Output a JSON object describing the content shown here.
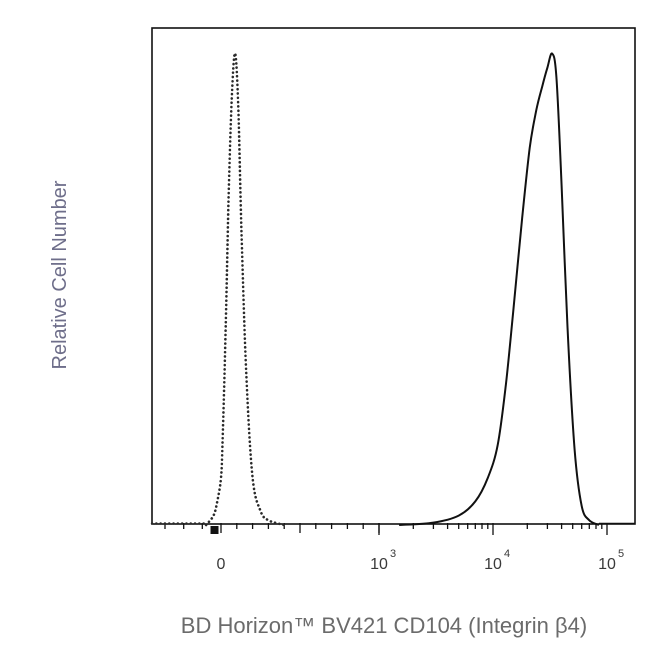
{
  "chart_data": {
    "type": "line",
    "title": "",
    "xlabel": "BD Horizon™ BV421 CD104 (Integrin β4)",
    "ylabel": "Relative Cell Number",
    "x_scale": "biexponential",
    "xlim": [
      -300,
      200000
    ],
    "ylim": [
      0,
      1.05
    ],
    "grid": false,
    "legend": "none",
    "x_ticks": [
      {
        "value": 0,
        "base": "0",
        "exp": ""
      },
      {
        "value": 1000,
        "base": "10",
        "exp": "3"
      },
      {
        "value": 10000,
        "base": "10",
        "exp": "4"
      },
      {
        "value": 100000,
        "base": "10",
        "exp": "5"
      }
    ],
    "series": [
      {
        "style": "dotted",
        "color": "#2a2a2a",
        "x": [
          -80,
          -40,
          -20,
          0,
          10,
          30,
          50,
          70,
          90,
          110,
          130,
          160,
          200,
          250,
          300,
          400
        ],
        "y": [
          0,
          0.02,
          0.05,
          0.1,
          0.18,
          0.42,
          0.72,
          0.92,
          1.0,
          0.88,
          0.62,
          0.32,
          0.1,
          0.03,
          0.01,
          0
        ]
      },
      {
        "style": "solid",
        "color": "#111111",
        "x": [
          1500,
          3000,
          5000,
          7000,
          9000,
          11000,
          13000,
          15000,
          18000,
          21000,
          24000,
          27000,
          30000,
          33000,
          36000,
          40000,
          45000,
          52000,
          60000,
          70000,
          85000
        ],
        "y": [
          0,
          0.005,
          0.02,
          0.05,
          0.1,
          0.17,
          0.3,
          0.45,
          0.65,
          0.8,
          0.88,
          0.93,
          0.97,
          1.0,
          0.95,
          0.72,
          0.42,
          0.16,
          0.04,
          0.01,
          0
        ]
      }
    ],
    "colors": {
      "frame": "#111111",
      "dotted": "#2a2a2a",
      "solid": "#111111",
      "tick_text": "#3a3a3a",
      "x_title": "#6b6b6b",
      "y_title": "#6e6e8a"
    }
  }
}
